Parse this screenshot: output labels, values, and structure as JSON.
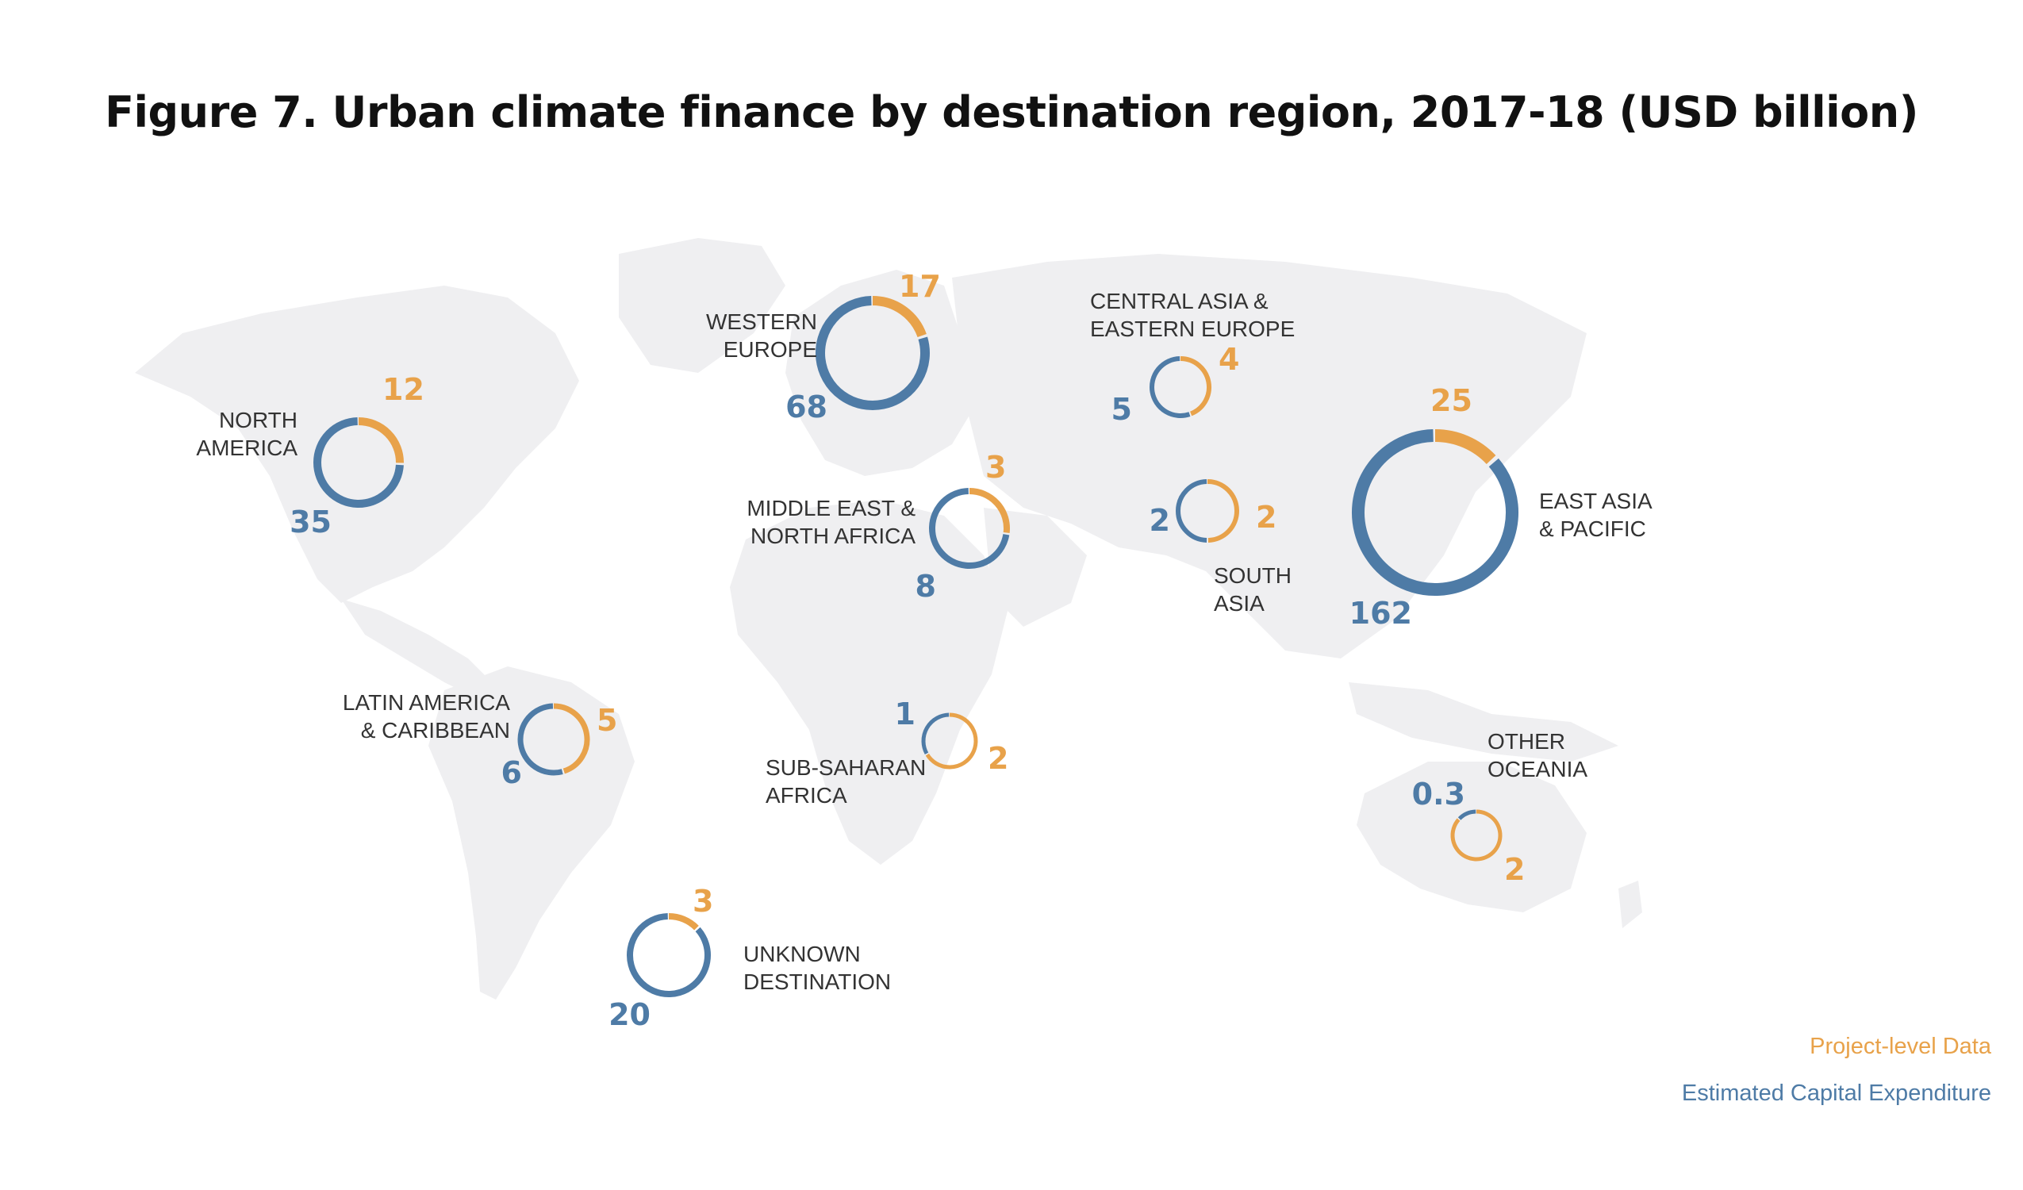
{
  "title": "Figure 7. Urban climate finance by destination region, 2017-18 (USD billion)",
  "colors": {
    "project": "#E8A24A",
    "capex": "#4E7BA6",
    "map": "#EFEFF1"
  },
  "legend": {
    "project": "Project-level Data",
    "capex": "Estimated Capital Expenditure"
  },
  "chart_data": {
    "type": "donut-map",
    "unit": "USD billion",
    "series": [
      {
        "name": "Project-level Data",
        "key": "project"
      },
      {
        "name": "Estimated Capital Expenditure",
        "key": "capex"
      }
    ],
    "regions": [
      {
        "id": "north-america",
        "label_lines": [
          "NORTH",
          "AMERICA"
        ],
        "project": 12,
        "project_text": "12",
        "capex": 35,
        "capex_text": "35"
      },
      {
        "id": "western-europe",
        "label_lines": [
          "WESTERN",
          "EUROPE"
        ],
        "project": 17,
        "project_text": "17",
        "capex": 68,
        "capex_text": "68"
      },
      {
        "id": "central-asia-eastern-europe",
        "label_lines": [
          "CENTRAL ASIA &",
          "EASTERN EUROPE"
        ],
        "project": 4,
        "project_text": "4",
        "capex": 5,
        "capex_text": "5"
      },
      {
        "id": "middle-east-north-africa",
        "label_lines": [
          "MIDDLE EAST &",
          "NORTH AFRICA"
        ],
        "project": 3,
        "project_text": "3",
        "capex": 8,
        "capex_text": "8"
      },
      {
        "id": "south-asia",
        "label_lines": [
          "SOUTH",
          "ASIA"
        ],
        "project": 2,
        "project_text": "2",
        "capex": 2,
        "capex_text": "2"
      },
      {
        "id": "east-asia-pacific",
        "label_lines": [
          "EAST ASIA",
          "& PACIFIC"
        ],
        "project": 25,
        "project_text": "25",
        "capex": 162,
        "capex_text": "162"
      },
      {
        "id": "latin-america-caribbean",
        "label_lines": [
          "LATIN AMERICA",
          "& CARIBBEAN"
        ],
        "project": 5,
        "project_text": "5",
        "capex": 6,
        "capex_text": "6"
      },
      {
        "id": "sub-saharan-africa",
        "label_lines": [
          "SUB-SAHARAN",
          "AFRICA"
        ],
        "project": 2,
        "project_text": "2",
        "capex": 1,
        "capex_text": "1"
      },
      {
        "id": "other-oceania",
        "label_lines": [
          "OTHER",
          "OCEANIA"
        ],
        "project": 2,
        "project_text": "2",
        "capex": 0.3,
        "capex_text": "0.3"
      },
      {
        "id": "unknown-destination",
        "label_lines": [
          "UNKNOWN",
          "DESTINATION"
        ],
        "project": 3,
        "project_text": "3",
        "capex": 20,
        "capex_text": "20"
      }
    ]
  }
}
